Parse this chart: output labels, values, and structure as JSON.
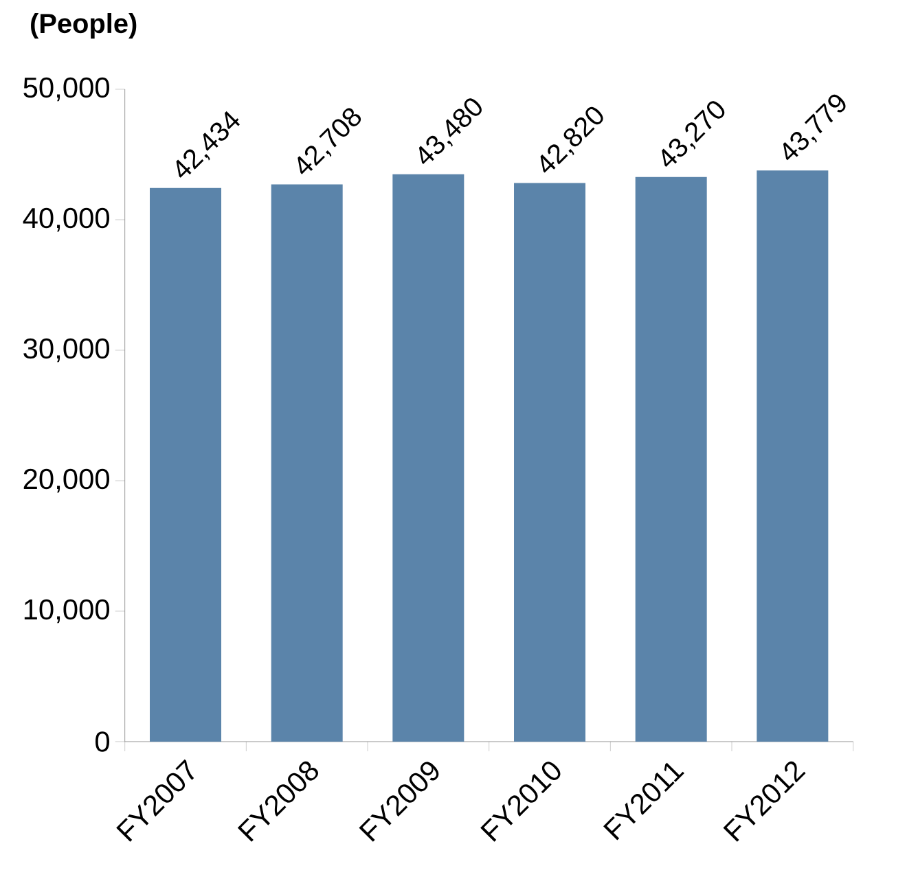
{
  "chart_data": {
    "type": "bar",
    "ylabel": "(People)",
    "categories": [
      "FY2007",
      "FY2008",
      "FY2009",
      "FY2010",
      "FY2011",
      "FY2012"
    ],
    "values": [
      42434,
      42708,
      43480,
      42820,
      43270,
      43779
    ],
    "value_labels": [
      "42,434",
      "42,708",
      "43,480",
      "42,820",
      "43,270",
      "43,779"
    ],
    "color": "#5b84aa",
    "ylim": [
      0,
      50000
    ],
    "yticks": [
      0,
      {
        "value": 10000,
        "label": "10,000"
      },
      {
        "value": 20000,
        "label": "20,000"
      },
      {
        "value": 30000,
        "label": "30,000"
      },
      {
        "value": 40000,
        "label": "40,000"
      },
      {
        "value": 50000,
        "label": "50,000"
      }
    ],
    "grid": false
  }
}
